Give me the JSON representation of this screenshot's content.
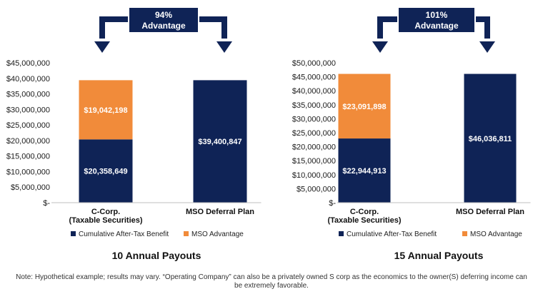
{
  "colors": {
    "navy": "#0f2356",
    "orange": "#f18b3a",
    "axis_text": "#1a1a1a"
  },
  "chart_data": [
    {
      "type": "bar",
      "stacked": true,
      "categories": [
        "C-Corp.\n(Taxable Securities)",
        "MSO Deferral Plan"
      ],
      "series": [
        {
          "name": "Cumulative After-Tax Benefit",
          "values": [
            20358649,
            39400847
          ],
          "labels": [
            "$20,358,649",
            "$39,400,847"
          ]
        },
        {
          "name": "MSO Advantage",
          "values": [
            19042198,
            0
          ],
          "labels": [
            "$19,042,198",
            ""
          ]
        }
      ],
      "ylim": [
        0,
        45000000
      ],
      "yticks": [
        "$-",
        "$5,000,000",
        "$10,000,000",
        "$15,000,000",
        "$20,000,000",
        "$25,000,000",
        "$30,000,000",
        "$35,000,000",
        "$40,000,000",
        "$45,000,000"
      ],
      "advantage_text": [
        "94%",
        "Advantage"
      ],
      "title": "10 Annual Payouts",
      "legend_placement": "bottom"
    },
    {
      "type": "bar",
      "stacked": true,
      "categories": [
        "C-Corp.\n(Taxable Securities)",
        "MSO Deferral Plan"
      ],
      "series": [
        {
          "name": "Cumulative After-Tax Benefit",
          "values": [
            22944913,
            46036811
          ],
          "labels": [
            "$22,944,913",
            "$46,036,811"
          ]
        },
        {
          "name": "MSO Advantage",
          "values": [
            23091898,
            0
          ],
          "labels": [
            "$23,091,898",
            ""
          ]
        }
      ],
      "ylim": [
        0,
        50000000
      ],
      "yticks": [
        "$-",
        "$5,000,000",
        "$10,000,000",
        "$15,000,000",
        "$20,000,000",
        "$25,000,000",
        "$30,000,000",
        "$35,000,000",
        "$40,000,000",
        "$45,000,000",
        "$50,000,000"
      ],
      "advantage_text": [
        "101%",
        "Advantage"
      ],
      "title": "15 Annual Payouts",
      "legend_placement": "bottom"
    }
  ],
  "footnote": "Note: Hypothetical example; results may vary. “Operating Company” can also be a privately owned S corp as the economics to the owner(S) deferring income can be extremely favorable."
}
